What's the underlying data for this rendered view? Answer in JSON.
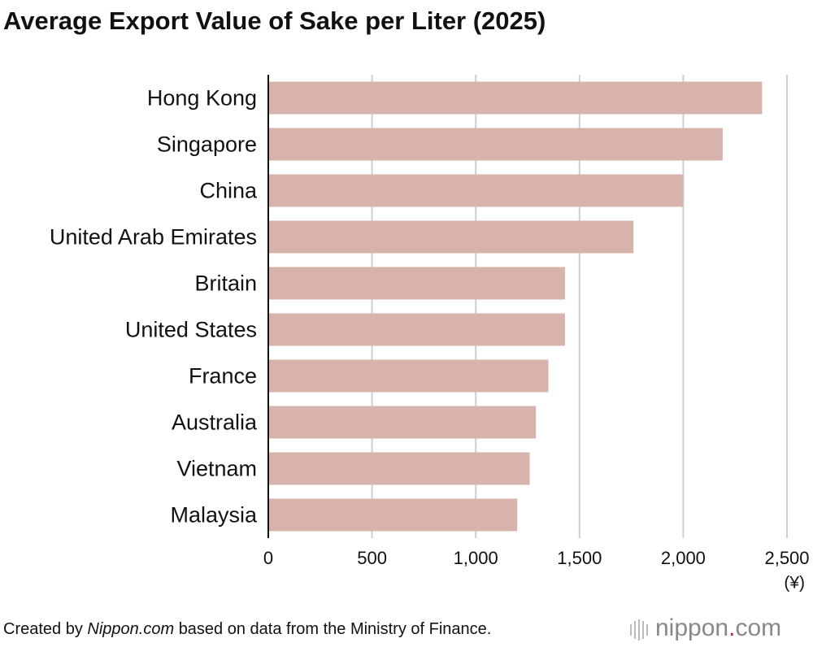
{
  "chart_data": {
    "type": "bar",
    "orientation": "horizontal",
    "title": "Average Export Value of Sake per Liter (2025)",
    "categories": [
      "Hong Kong",
      "Singapore",
      "China",
      "United Arab Emirates",
      "Britain",
      "United States",
      "France",
      "Australia",
      "Vietnam",
      "Malaysia"
    ],
    "values": [
      2380,
      2190,
      2000,
      1760,
      1430,
      1430,
      1350,
      1290,
      1260,
      1200
    ],
    "color": "#d8b3ab",
    "xlim": [
      0,
      2500
    ],
    "xticks": [
      0,
      500,
      {
        "value": 1000,
        "label": "1,000"
      },
      {
        "value": 1500,
        "label": "1,500"
      },
      {
        "value": 2000,
        "label": "2,000"
      },
      {
        "value": 2500,
        "label": "2,500"
      }
    ],
    "x_unit": "(¥)",
    "grid": true
  },
  "footer": {
    "source_prefix": "Created by",
    "source_italic": "Nippon.com",
    "source_suffix": "based on data from the Ministry of Finance.",
    "logo_name": "nippon",
    "logo_dot": ".",
    "logo_suffix": "com"
  }
}
